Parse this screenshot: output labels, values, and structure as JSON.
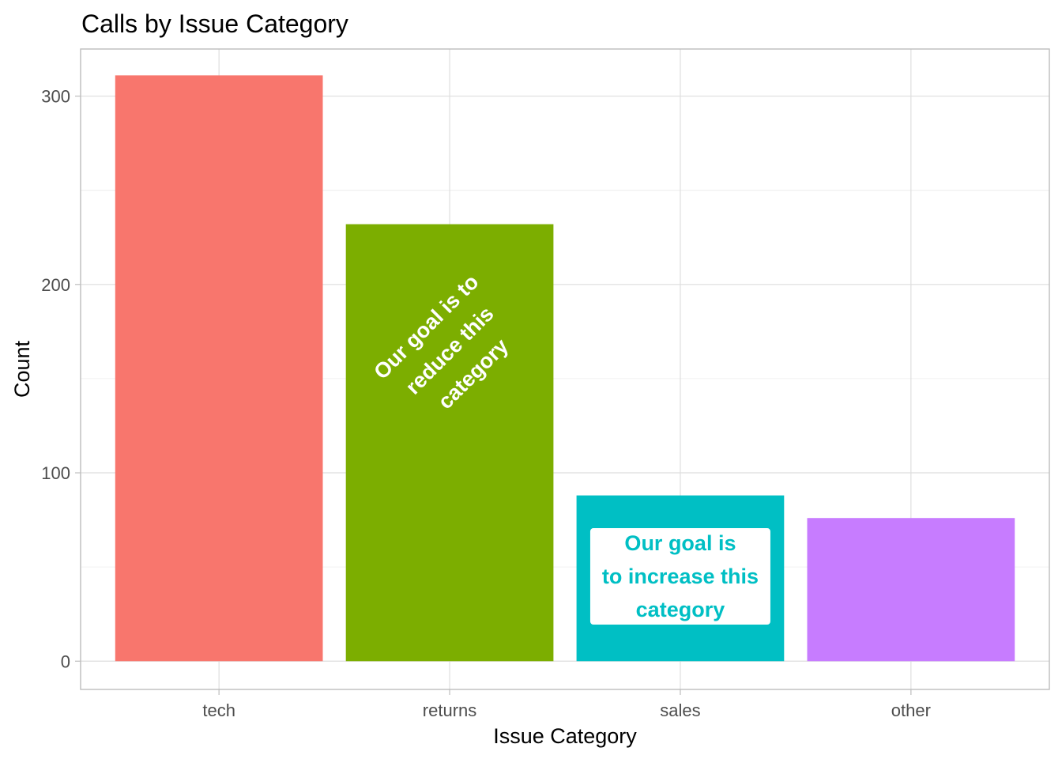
{
  "chart_data": {
    "type": "bar",
    "title": "Calls by Issue Category",
    "xlabel": "Issue Category",
    "ylabel": "Count",
    "categories": [
      "tech",
      "returns",
      "sales",
      "other"
    ],
    "values": [
      311,
      232,
      88,
      76
    ],
    "colors": [
      "#F8766D",
      "#7CAE00",
      "#00BFC4",
      "#C77CFF"
    ],
    "ylim": [
      -15,
      325
    ],
    "yticks": [
      0,
      100,
      200,
      300
    ],
    "grid": true,
    "legend": "none",
    "annotations": [
      {
        "category": "returns",
        "lines": [
          "Our goal is to",
          "reduce this",
          "category"
        ],
        "y": 165,
        "angle": 45,
        "color": "#ffffff",
        "boxed": false
      },
      {
        "category": "sales",
        "lines": [
          "Our goal is",
          "to increase this",
          "category"
        ],
        "y": 45,
        "angle": 0,
        "color": "#00BFC4",
        "boxed": true,
        "box_fill": "#ffffff"
      }
    ]
  }
}
